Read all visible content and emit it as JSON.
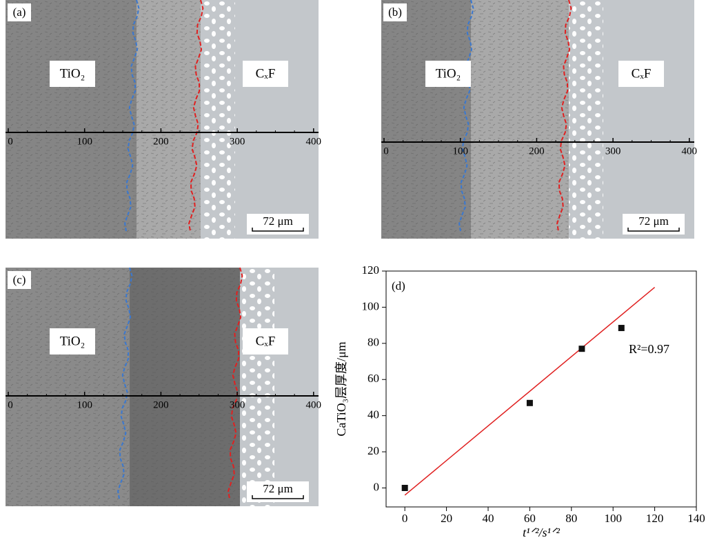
{
  "panels": [
    {
      "label": "(a)",
      "left_label": "TiO₂",
      "right_label": "CₓF",
      "ticks": [
        0,
        100,
        200,
        300,
        400
      ],
      "scale_bar": "72 μm"
    },
    {
      "label": "(b)",
      "left_label": "TiO₂",
      "right_label": "CₓF",
      "ticks": [
        0,
        100,
        200,
        300,
        400
      ],
      "scale_bar": "72 μm"
    },
    {
      "label": "(c)",
      "left_label": "TiO₂",
      "right_label": "CₓF",
      "ticks": [
        0,
        100,
        200,
        300,
        400
      ],
      "scale_bar": "72 μm"
    }
  ],
  "chart_data": {
    "type": "scatter",
    "annotation": "(d)",
    "r2_label": "R²=0.97",
    "x_label": "t¹ᐟ²/s¹ᐟ²",
    "y_label": "CaTiO₃层厚度/μm",
    "series": [
      {
        "x": [
          0,
          60,
          85,
          104
        ],
        "values": [
          0,
          47,
          77,
          88.5
        ],
        "color": "#111111"
      }
    ],
    "fit": {
      "x": [
        0,
        120
      ],
      "values": [
        -4,
        111
      ],
      "color": "#e02020"
    },
    "xlim": [
      -9,
      140
    ],
    "ylim": [
      -10.5,
      120
    ],
    "xticks": [
      0,
      20,
      40,
      60,
      80,
      100,
      120,
      140
    ],
    "yticks": [
      0,
      20,
      40,
      60,
      80,
      100,
      120
    ]
  }
}
